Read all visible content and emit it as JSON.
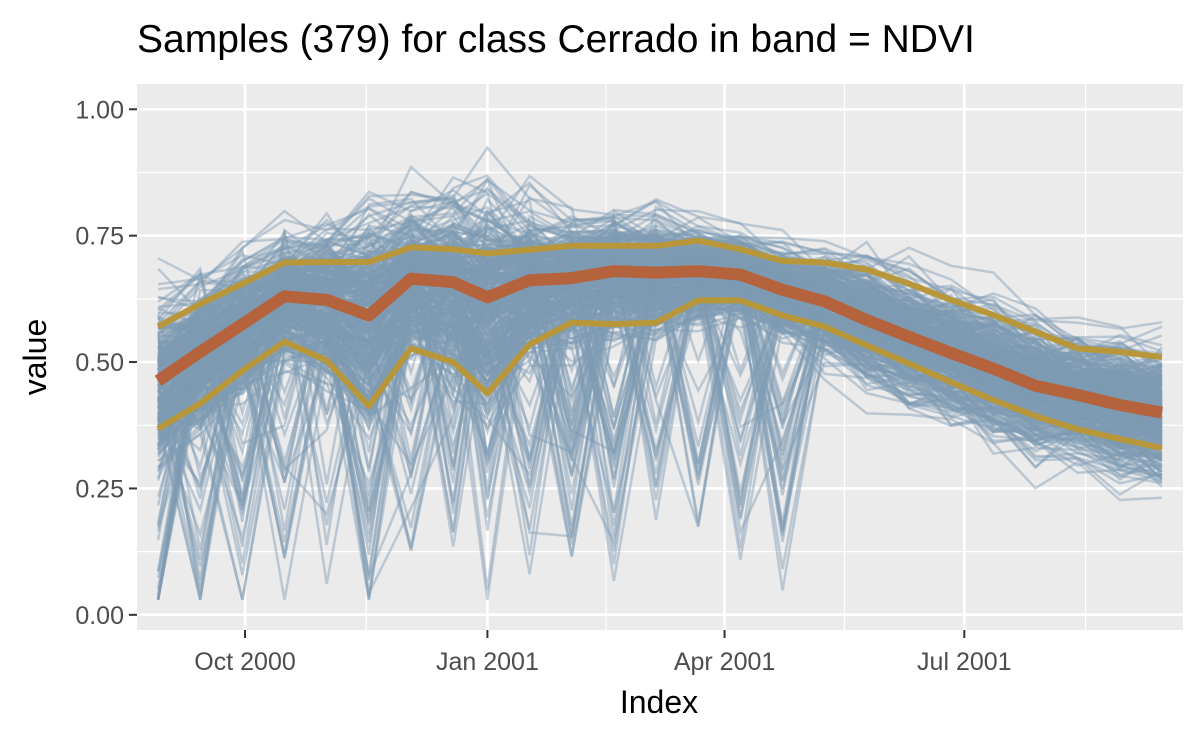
{
  "chart_data": {
    "type": "line",
    "title": "Samples (379) for class Cerrado in band = NDVI",
    "xlabel": "Index",
    "ylabel": "value",
    "x_ticks": [
      "Oct 2000",
      "Jan 2001",
      "Apr 2001",
      "Jul 2001"
    ],
    "y_ticks": [
      "0.00",
      "0.25",
      "0.50",
      "0.75",
      "1.00"
    ],
    "ylim": [
      -0.03,
      1.05
    ],
    "xlim": [
      "2000-08-21",
      "2001-09-22"
    ],
    "grid": true,
    "x": [
      "2000-08-29",
      "2000-09-14",
      "2000-09-30",
      "2000-10-16",
      "2000-11-01",
      "2000-11-17",
      "2000-12-03",
      "2000-12-19",
      "2001-01-01",
      "2001-01-17",
      "2001-02-02",
      "2001-02-18",
      "2001-03-06",
      "2001-03-22",
      "2001-04-07",
      "2001-04-23",
      "2001-05-09",
      "2001-05-25",
      "2001-06-10",
      "2001-06-26",
      "2001-07-12",
      "2001-07-28",
      "2001-08-13",
      "2001-08-29",
      "2001-09-14"
    ],
    "series": [
      {
        "role": "upper",
        "color": "#b8963a",
        "values": [
          0.57,
          0.615,
          0.655,
          0.697,
          0.698,
          0.698,
          0.727,
          0.723,
          0.715,
          0.722,
          0.73,
          0.73,
          0.73,
          0.74,
          0.723,
          0.7,
          0.697,
          0.683,
          0.655,
          0.623,
          0.593,
          0.56,
          0.527,
          0.52,
          0.51
        ]
      },
      {
        "role": "median",
        "color": "#b5633d",
        "values": [
          0.463,
          0.52,
          0.575,
          0.63,
          0.623,
          0.592,
          0.665,
          0.658,
          0.628,
          0.662,
          0.666,
          0.68,
          0.677,
          0.68,
          0.673,
          0.643,
          0.62,
          0.583,
          0.55,
          0.518,
          0.487,
          0.453,
          0.435,
          0.415,
          0.4
        ]
      },
      {
        "role": "lower",
        "color": "#b8963a",
        "values": [
          0.368,
          0.418,
          0.483,
          0.54,
          0.503,
          0.413,
          0.527,
          0.5,
          0.438,
          0.535,
          0.578,
          0.575,
          0.578,
          0.622,
          0.622,
          0.592,
          0.57,
          0.533,
          0.497,
          0.46,
          0.425,
          0.393,
          0.367,
          0.348,
          0.33
        ]
      }
    ],
    "samples": {
      "count": 379,
      "color": "#7e9bb4",
      "opacity": 0.45
    }
  }
}
